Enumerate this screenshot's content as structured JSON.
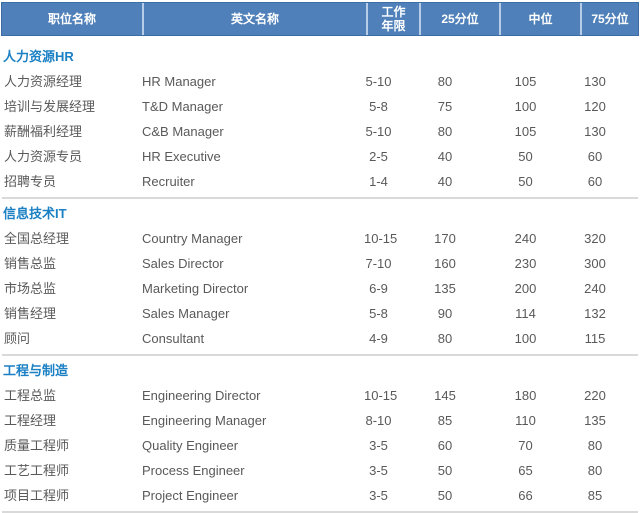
{
  "table": {
    "columns": [
      "职位名称",
      "英文名称",
      "工作年限",
      "25分位",
      "中位",
      "75分位"
    ],
    "sections": [
      {
        "title": "人力资源HR",
        "rows": [
          [
            "人力资源经理",
            "HR Manager",
            "5-10",
            "80",
            "105",
            "130"
          ],
          [
            "培训与发展经理",
            "T&D Manager",
            "5-8",
            "75",
            "100",
            "120"
          ],
          [
            "薪酬福利经理",
            "C&B Manager",
            "5-10",
            "80",
            "105",
            "130"
          ],
          [
            "人力资源专员",
            "HR Executive",
            "2-5",
            "40",
            "50",
            "60"
          ],
          [
            "招聘专员",
            "Recruiter",
            "1-4",
            "40",
            "50",
            "60"
          ]
        ]
      },
      {
        "title": "信息技术IT",
        "rows": [
          [
            "全国总经理",
            "Country Manager",
            "10-15",
            "170",
            "240",
            "320"
          ],
          [
            "销售总监",
            "Sales Director",
            "7-10",
            "160",
            "230",
            "300"
          ],
          [
            "市场总监",
            "Marketing Director",
            "6-9",
            "135",
            "200",
            "240"
          ],
          [
            "销售经理",
            "Sales Manager",
            "5-8",
            "90",
            "114",
            "132"
          ],
          [
            "顾问",
            "Consultant",
            "4-9",
            "80",
            "100",
            "115"
          ]
        ]
      },
      {
        "title": "工程与制造",
        "rows": [
          [
            "工程总监",
            "Engineering Director",
            "10-15",
            "145",
            "180",
            "220"
          ],
          [
            "工程经理",
            "Engineering Manager",
            "8-10",
            "85",
            "110",
            "135"
          ],
          [
            "质量工程师",
            "Quality Engineer",
            "3-5",
            "60",
            "70",
            "80"
          ],
          [
            "工艺工程师",
            "Process Engineer",
            "3-5",
            "50",
            "65",
            "80"
          ],
          [
            "项目工程师",
            "Project Engineer",
            "3-5",
            "50",
            "66",
            "85"
          ]
        ]
      }
    ]
  },
  "colors": {
    "header_bg": "#4F80B9",
    "header_border": "#3E6CA4",
    "header_divider": "#B7CCE7",
    "header_text": "#FFFFFF",
    "section_title": "#1B80C4",
    "body_text": "#595959",
    "divider": "#D9D9D9"
  }
}
